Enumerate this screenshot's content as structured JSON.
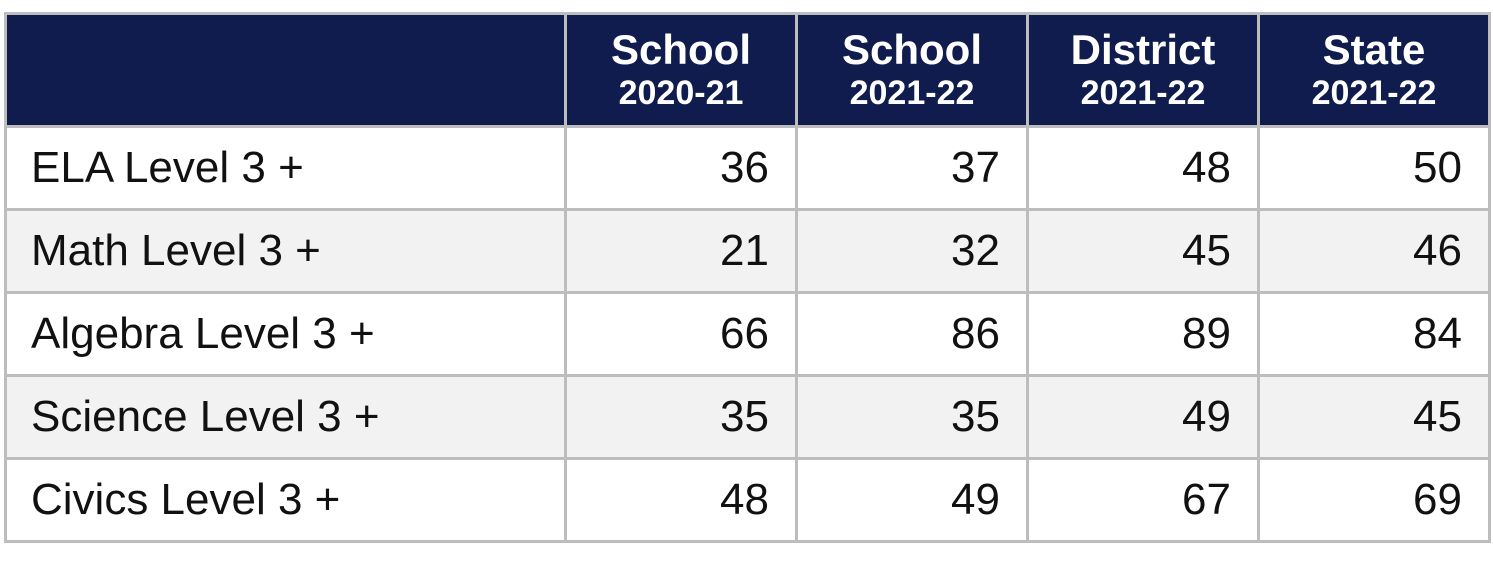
{
  "table": {
    "columns": [
      {
        "title": "School",
        "period": "2020-21"
      },
      {
        "title": "School",
        "period": "2021-22"
      },
      {
        "title": "District",
        "period": "2021-22"
      },
      {
        "title": "State",
        "period": "2021-22"
      }
    ],
    "rows": [
      {
        "label": "ELA Level 3 +",
        "values": [
          36,
          37,
          48,
          50
        ]
      },
      {
        "label": "Math Level 3 +",
        "values": [
          21,
          32,
          45,
          46
        ]
      },
      {
        "label": "Algebra Level 3 +",
        "values": [
          66,
          86,
          89,
          84
        ]
      },
      {
        "label": "Science Level 3 +",
        "values": [
          35,
          35,
          49,
          45
        ]
      },
      {
        "label": "Civics Level 3 +",
        "values": [
          48,
          49,
          67,
          69
        ]
      }
    ]
  }
}
